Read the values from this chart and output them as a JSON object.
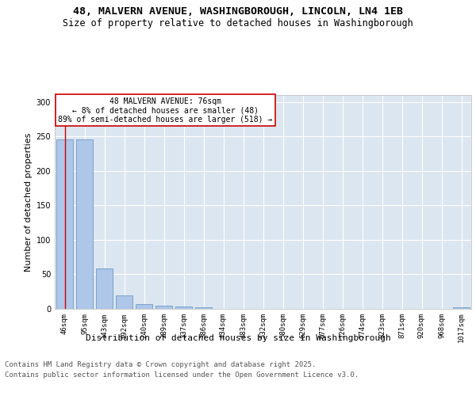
{
  "title_line1": "48, MALVERN AVENUE, WASHINGBOROUGH, LINCOLN, LN4 1EB",
  "title_line2": "Size of property relative to detached houses in Washingborough",
  "xlabel": "Distribution of detached houses by size in Washingborough",
  "ylabel": "Number of detached properties",
  "categories": [
    "46sqm",
    "95sqm",
    "143sqm",
    "192sqm",
    "240sqm",
    "289sqm",
    "337sqm",
    "386sqm",
    "434sqm",
    "483sqm",
    "532sqm",
    "580sqm",
    "629sqm",
    "677sqm",
    "726sqm",
    "774sqm",
    "823sqm",
    "871sqm",
    "920sqm",
    "968sqm",
    "1017sqm"
  ],
  "values": [
    246,
    246,
    59,
    20,
    7,
    5,
    3,
    2,
    0,
    0,
    0,
    0,
    0,
    0,
    0,
    0,
    0,
    0,
    0,
    0,
    2
  ],
  "bar_color": "#aec6e8",
  "bar_edge_color": "#5a8fc0",
  "background_color": "#dce6f0",
  "grid_color": "#ffffff",
  "annotation_box_text": "48 MALVERN AVENUE: 76sqm\n← 8% of detached houses are smaller (48)\n89% of semi-detached houses are larger (518) →",
  "annotation_box_color": "#ffffff",
  "annotation_box_edge_color": "#cc0000",
  "vline_color": "#cc0000",
  "ylim": [
    0,
    310
  ],
  "yticks": [
    0,
    50,
    100,
    150,
    200,
    250,
    300
  ],
  "title_fontsize": 9.5,
  "subtitle_fontsize": 8.5,
  "tick_fontsize": 6.5,
  "label_fontsize": 8,
  "annotation_fontsize": 7,
  "footer_fontsize": 6.5
}
